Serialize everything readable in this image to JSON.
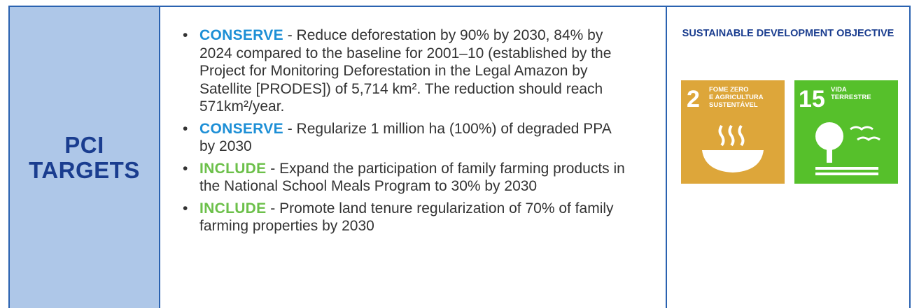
{
  "left_header": {
    "lines": [
      "PCI",
      "TARGETS"
    ]
  },
  "bullets": [
    {
      "label": "CONSERVE",
      "color": "#1d8fd6",
      "text": " - Reduce deforestation by 90% by 2030, 84% by 2024 compared to the baseline for 2001–10 (established by the Project for Monitoring Deforestation in the Legal Amazon by Satellite [PRODES]) of 5,714 km². The reduction should reach 571km²/year."
    },
    {
      "label": "CONSERVE",
      "color": "#1d8fd6",
      "text": " - Regularize 1 million ha (100%) of degraded PPA by 2030"
    },
    {
      "label": "INCLUDE",
      "color": "#6cc04a",
      "text": " - Expand the participation of family farming products in the National School Meals Program to 30% by 2030"
    },
    {
      "label": "INCLUDE",
      "color": "#6cc04a",
      "text": " - Promote land tenure regularization of 70% of family farming properties by 2030"
    }
  ],
  "objective": {
    "title": "SUSTAINABLE DEVELOPMENT OBJECTIVE",
    "icons": [
      {
        "number": "2",
        "lines": [
          "FOME ZERO",
          "E AGRICULTURA",
          "SUSTENTÁVEL"
        ],
        "color": "#dda63a"
      },
      {
        "number": "15",
        "lines": [
          "VIDA",
          "TERRESTRE"
        ],
        "color": "#56c02b"
      }
    ]
  }
}
